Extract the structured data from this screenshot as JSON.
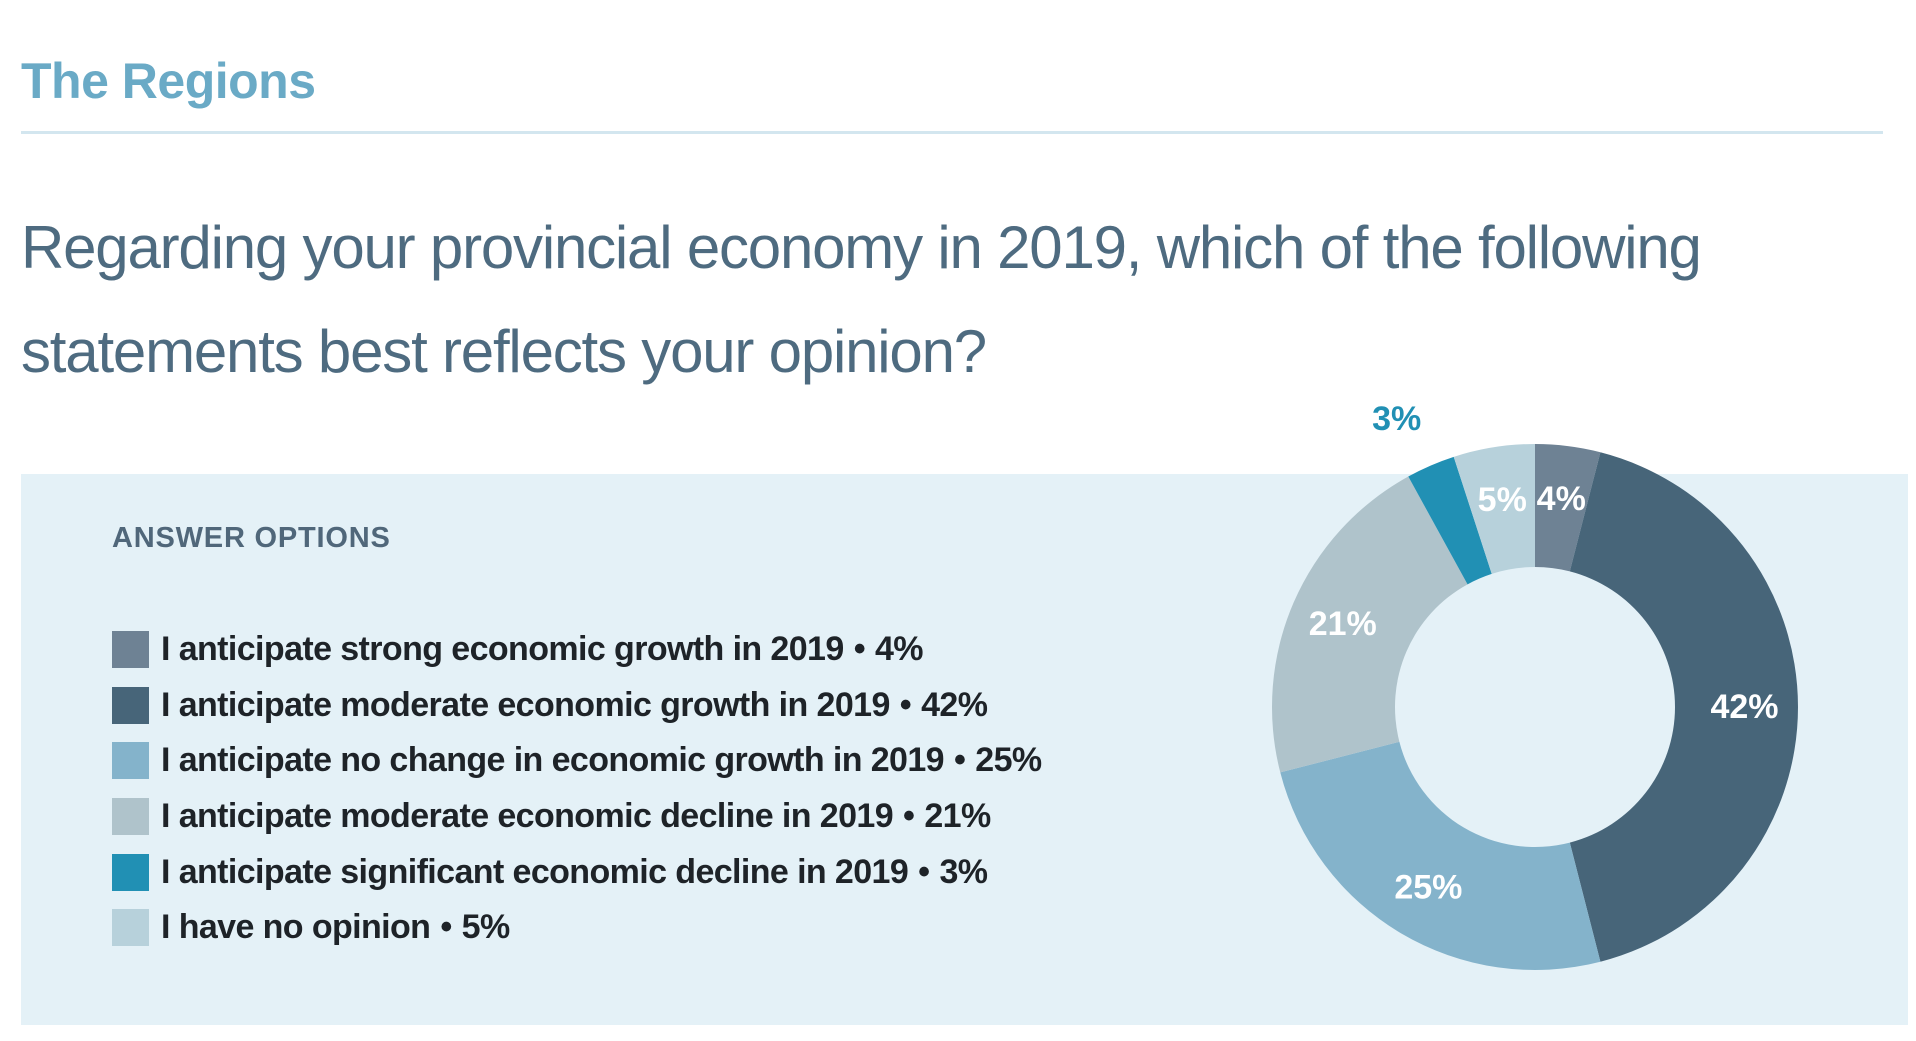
{
  "header": {
    "section_title": "The Regions",
    "question": "Regarding your provincial economy in 2019, which of the following statements best reflects your opinion?"
  },
  "legend": {
    "heading": "ANSWER OPTIONS",
    "separator": "•"
  },
  "chart_data": {
    "type": "pie",
    "donut": true,
    "legend_position": "left",
    "slices": [
      {
        "label": "I anticipate strong economic growth in 2019",
        "value": 4,
        "value_label": "4%",
        "color": "#6e8294",
        "label_color": "#ffffff"
      },
      {
        "label": "I anticipate moderate economic growth in 2019",
        "value": 42,
        "value_label": "42%",
        "color": "#476579",
        "label_color": "#ffffff"
      },
      {
        "label": "I anticipate no change in economic growth in 2019",
        "value": 25,
        "value_label": "25%",
        "color": "#84b3cb",
        "label_color": "#ffffff"
      },
      {
        "label": "I anticipate moderate economic decline in 2019",
        "value": 21,
        "value_label": "21%",
        "color": "#afc3cb",
        "label_color": "#ffffff"
      },
      {
        "label": "I anticipate significant economic decline in 2019",
        "value": 3,
        "value_label": "3%",
        "color": "#2190b4",
        "label_color": "#2190b4"
      },
      {
        "label": "I have no opinion",
        "value": 5,
        "value_label": "5%",
        "color": "#b7d1db",
        "label_color": "#ffffff"
      }
    ]
  },
  "colors": {
    "section_title": "#6aaac6",
    "question_text": "#4e6b80",
    "panel_background": "#e4f1f7",
    "rule": "#d3e6ef"
  }
}
